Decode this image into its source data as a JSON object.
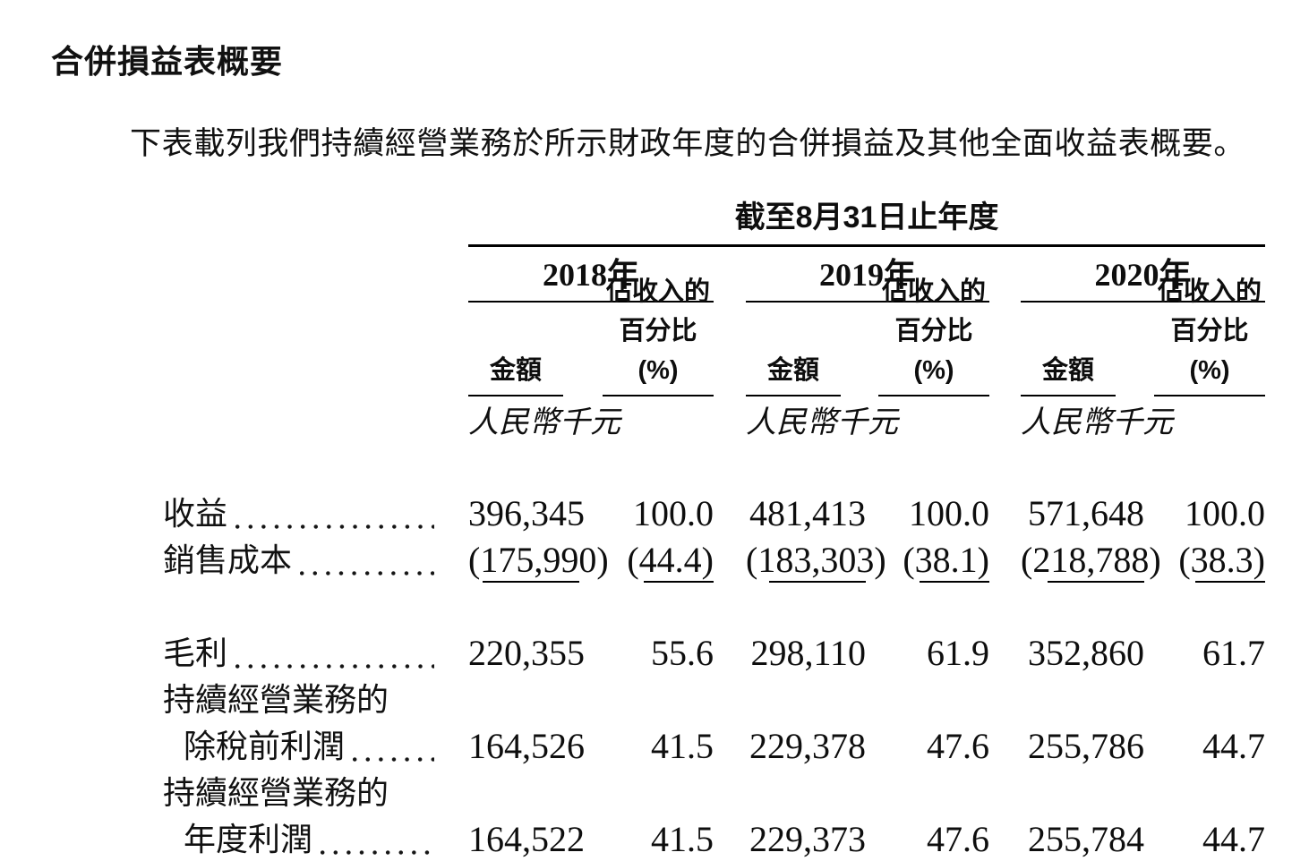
{
  "title": "合併損益表概要",
  "intro": "下表載列我們持續經營業務於所示財政年度的合併損益及其他全面收益表概要。",
  "table": {
    "period_header": "截至8月31日止年度",
    "years": {
      "y2018": "2018年",
      "y2019": "2019年",
      "y2020": "2020年"
    },
    "subheaders": {
      "amount": "金額",
      "pct_line1": "佔收入的",
      "pct_line2": "百分比(%)"
    },
    "currency_note": "人民幣千元",
    "rows": {
      "revenue": {
        "label": "收益",
        "v": [
          "396,345",
          "100.0",
          "481,413",
          "100.0",
          "571,648",
          "100.0"
        ]
      },
      "cost_of_sales": {
        "label": "銷售成本",
        "v": [
          "(175,990)",
          "(44.4)",
          "(183,303)",
          "(38.1)",
          "(218,788)",
          "(38.3)"
        ]
      },
      "gross_profit": {
        "label": "毛利",
        "v": [
          "220,355",
          "55.6",
          "298,110",
          "61.9",
          "352,860",
          "61.7"
        ]
      },
      "continuing_caption_1": {
        "label": "持續經營業務的"
      },
      "profit_before_tax": {
        "label": "除稅前利潤",
        "v": [
          "164,526",
          "41.5",
          "229,378",
          "47.6",
          "255,786",
          "44.7"
        ]
      },
      "continuing_caption_2": {
        "label": "持續經營業務的"
      },
      "profit_for_year": {
        "label": "年度利潤",
        "v": [
          "164,522",
          "41.5",
          "229,373",
          "47.6",
          "255,784",
          "44.7"
        ]
      }
    }
  }
}
